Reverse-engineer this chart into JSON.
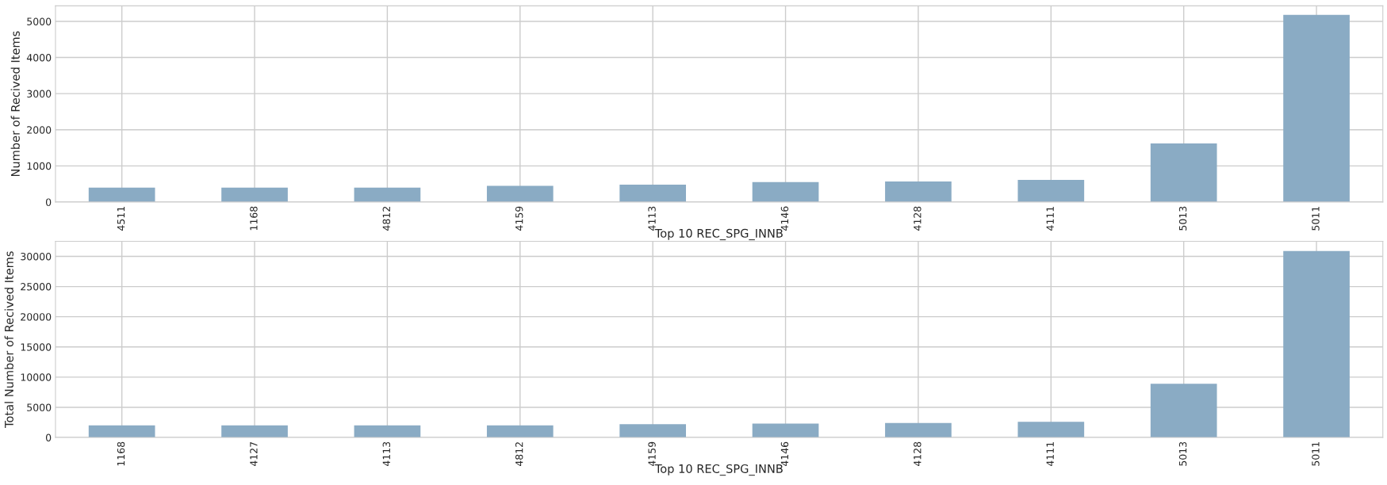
{
  "chart_data": [
    {
      "type": "bar",
      "xlabel": "Top 10 REC_SPG_INNB",
      "ylabel": "Number of Recived Items",
      "categories": [
        "4511",
        "1168",
        "4812",
        "4159",
        "4113",
        "4146",
        "4128",
        "4111",
        "5013",
        "5011"
      ],
      "values": [
        400,
        400,
        400,
        450,
        480,
        550,
        570,
        610,
        1620,
        5180
      ],
      "color": "#8aabc4",
      "ylim": [
        0,
        5430
      ],
      "yticks": [
        0,
        1000,
        2000,
        3000,
        4000,
        5000
      ],
      "grid": true,
      "legend": false
    },
    {
      "type": "bar",
      "xlabel": "Top 10 REC_SPG_INNB",
      "ylabel": "Total Number of Recived Items",
      "categories": [
        "1168",
        "4127",
        "4113",
        "4812",
        "4159",
        "4146",
        "4128",
        "4111",
        "5013",
        "5011"
      ],
      "values": [
        2000,
        2000,
        2000,
        2000,
        2200,
        2300,
        2400,
        2600,
        8900,
        30900
      ],
      "color": "#8aabc4",
      "ylim": [
        0,
        32500
      ],
      "yticks": [
        0,
        5000,
        10000,
        15000,
        20000,
        25000,
        30000
      ],
      "grid": true,
      "legend": false
    }
  ]
}
